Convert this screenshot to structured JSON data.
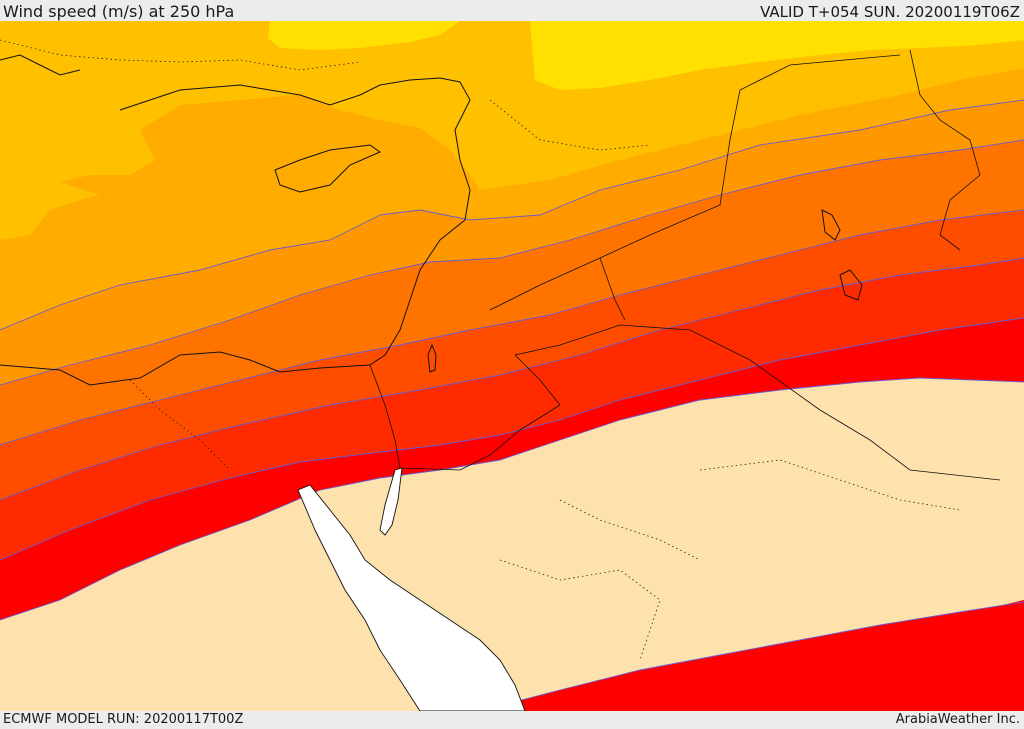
{
  "header": {
    "title": "Wind speed (m/s) at 250 hPa",
    "valid": "VALID T+054 SUN. 20200119T06Z"
  },
  "footer": {
    "model_run": "ECMWF MODEL RUN: 20200117T00Z",
    "credit": "ArabiaWeather Inc."
  },
  "map": {
    "variable": "wind speed at 250 hPa",
    "units": "m/s",
    "colors": {
      "weakest": "#fde2ad",
      "band_yellow": "#ffe000",
      "band_yellow_orange": "#ffc000",
      "band_light_orange": "#ffab00",
      "band_orange": "#ff9800",
      "band_dark_orange": "#ff7400",
      "band_red_orange": "#ff4d00",
      "band_orange_red": "#ff2a00",
      "band_red": "#ff0000",
      "sea": "#ffffff",
      "coastline": "#111111",
      "contour_line": "#6a5acd"
    }
  }
}
